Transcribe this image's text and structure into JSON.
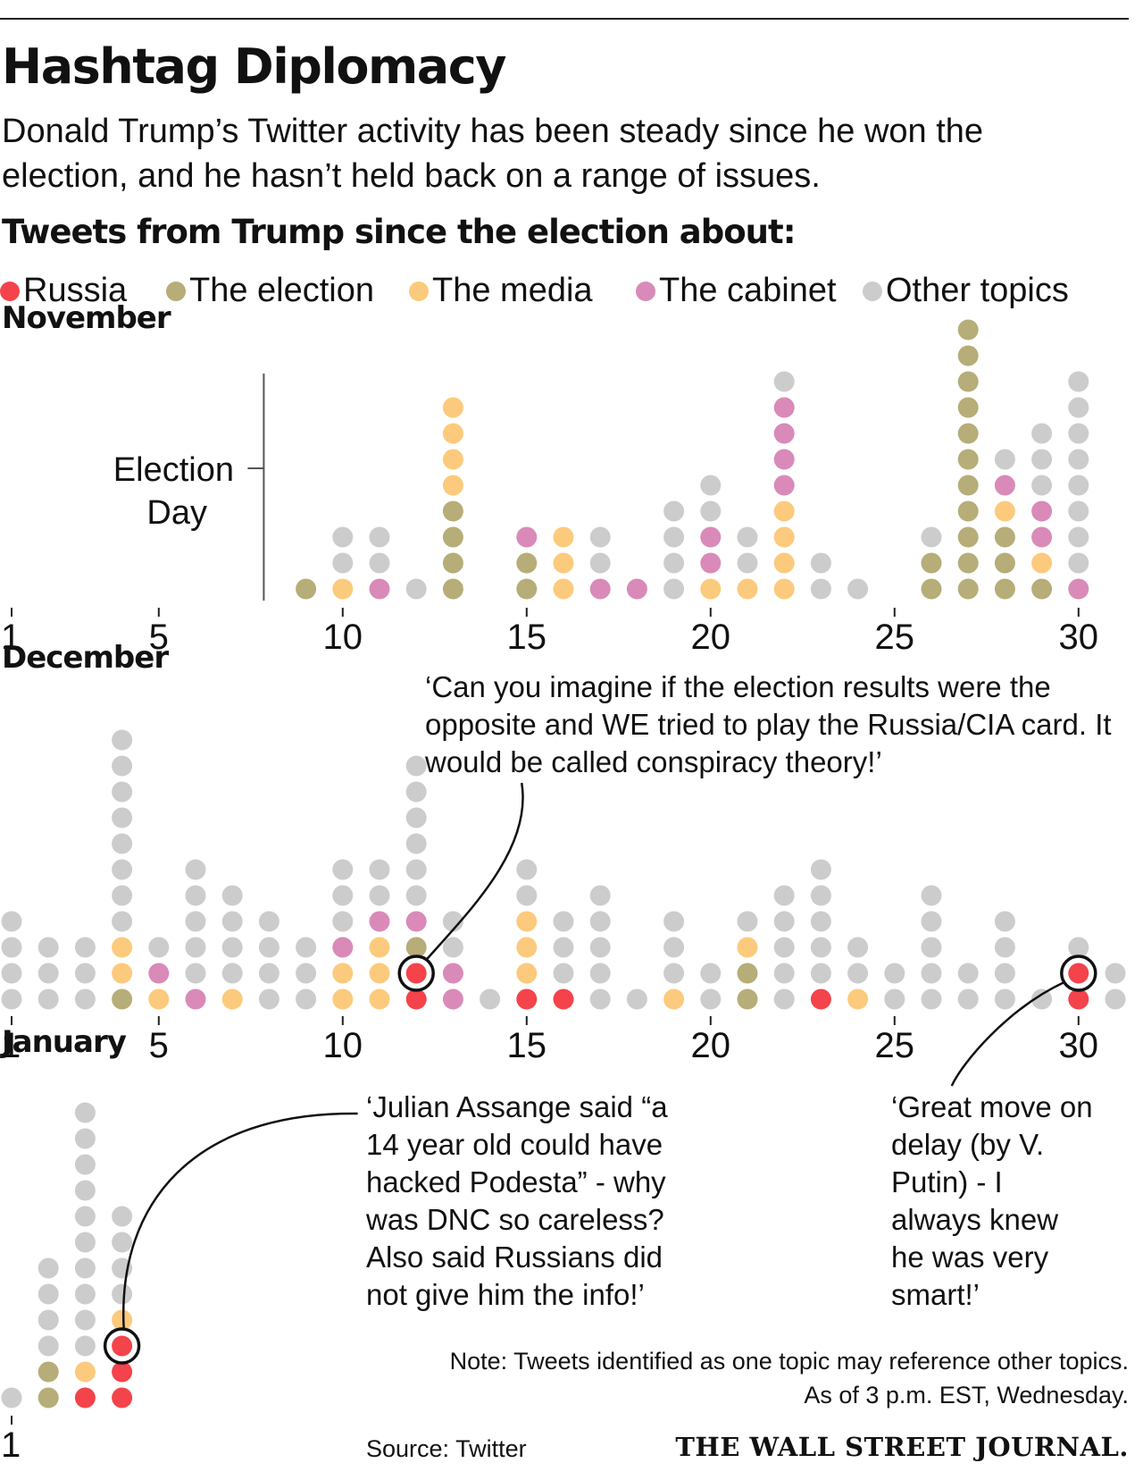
{
  "header": {
    "title": "Hashtag Diplomacy",
    "subtitle": "Donald Trump’s Twitter activity has been steady since he won the election, and he hasn’t held back on a range of issues.",
    "subhead": "Tweets from Trump since the election about:"
  },
  "legend": [
    {
      "label": "Russia",
      "color": "#f4434a"
    },
    {
      "label": "The election",
      "color": "#b6ad78"
    },
    {
      "label": "The media",
      "color": "#fcca7c"
    },
    {
      "label": "The cabinet",
      "color": "#d98ab9"
    },
    {
      "label": "Other topics",
      "color": "#cccccc"
    }
  ],
  "annotations": {
    "election_day": [
      "Election",
      "Day"
    ],
    "quote_dec12": "‘Can you imagine if the election results were the opposite and WE tried to play the Russia/CIA card. It would be called conspiracy theory!’",
    "quote_jan4": "‘Julian Assange said “a\n14 year old could have\nhacked Podesta” - why\nwas DNC so careless?\nAlso said Russians did\nnot give him the info!’",
    "quote_dec30": "‘Great move on\ndelay (by V.\nPutin) - I\nalways knew\nhe was very\nsmart!’"
  },
  "footer": {
    "note": "Note: Tweets identified as one topic may reference other topics.",
    "asof": "As of 3 p.m. EST, Wednesday.",
    "source": "Source: Twitter",
    "publisher": "THE WALL STREET JOURNAL."
  },
  "chart_data": {
    "type": "dot-stack",
    "topic_order_bottom_to_top": [
      "Russia",
      "The election",
      "The media",
      "The cabinet",
      "Other topics"
    ],
    "x_ticks": [
      1,
      5,
      10,
      15,
      20,
      25,
      30
    ],
    "months": [
      {
        "name": "November",
        "x_ticks": [
          1,
          5,
          10,
          15,
          20,
          25,
          30
        ],
        "election_day": 8,
        "days": [
          {
            "day": 9,
            "counts": [
              0,
              1,
              0,
              0,
              0
            ]
          },
          {
            "day": 10,
            "counts": [
              0,
              0,
              1,
              0,
              2
            ]
          },
          {
            "day": 11,
            "counts": [
              0,
              0,
              0,
              1,
              2
            ]
          },
          {
            "day": 12,
            "counts": [
              0,
              0,
              0,
              0,
              1
            ]
          },
          {
            "day": 13,
            "counts": [
              0,
              4,
              4,
              0,
              0
            ]
          },
          {
            "day": 15,
            "counts": [
              0,
              2,
              0,
              1,
              0
            ]
          },
          {
            "day": 16,
            "counts": [
              0,
              0,
              3,
              0,
              0
            ]
          },
          {
            "day": 17,
            "counts": [
              0,
              0,
              0,
              1,
              2
            ]
          },
          {
            "day": 18,
            "counts": [
              0,
              0,
              0,
              1,
              0
            ]
          },
          {
            "day": 19,
            "counts": [
              0,
              0,
              0,
              0,
              4
            ]
          },
          {
            "day": 20,
            "counts": [
              0,
              0,
              1,
              2,
              2
            ]
          },
          {
            "day": 21,
            "counts": [
              0,
              0,
              1,
              0,
              2
            ]
          },
          {
            "day": 22,
            "counts": [
              0,
              0,
              4,
              4,
              1
            ]
          },
          {
            "day": 23,
            "counts": [
              0,
              0,
              0,
              0,
              2
            ]
          },
          {
            "day": 24,
            "counts": [
              0,
              0,
              0,
              0,
              1
            ]
          },
          {
            "day": 26,
            "counts": [
              0,
              2,
              0,
              0,
              1
            ]
          },
          {
            "day": 27,
            "counts": [
              0,
              11,
              0,
              0,
              0
            ]
          },
          {
            "day": 28,
            "counts": [
              0,
              3,
              1,
              1,
              1
            ]
          },
          {
            "day": 29,
            "counts": [
              0,
              1,
              1,
              2,
              3
            ]
          },
          {
            "day": 30,
            "counts": [
              0,
              0,
              0,
              1,
              8
            ]
          }
        ]
      },
      {
        "name": "December",
        "x_ticks": [
          1,
          5,
          10,
          15,
          20,
          25,
          30
        ],
        "days": [
          {
            "day": 1,
            "counts": [
              0,
              0,
              0,
              0,
              4
            ]
          },
          {
            "day": 2,
            "counts": [
              0,
              0,
              0,
              0,
              3
            ]
          },
          {
            "day": 3,
            "counts": [
              0,
              0,
              0,
              0,
              3
            ]
          },
          {
            "day": 4,
            "counts": [
              0,
              1,
              2,
              0,
              8
            ]
          },
          {
            "day": 5,
            "counts": [
              0,
              0,
              1,
              1,
              1
            ]
          },
          {
            "day": 6,
            "counts": [
              0,
              0,
              0,
              1,
              5
            ]
          },
          {
            "day": 7,
            "counts": [
              0,
              0,
              1,
              0,
              4
            ]
          },
          {
            "day": 8,
            "counts": [
              0,
              0,
              0,
              0,
              4
            ]
          },
          {
            "day": 9,
            "counts": [
              0,
              0,
              0,
              0,
              3
            ]
          },
          {
            "day": 10,
            "counts": [
              0,
              0,
              2,
              1,
              3
            ]
          },
          {
            "day": 11,
            "counts": [
              0,
              0,
              3,
              1,
              2
            ]
          },
          {
            "day": 12,
            "counts": [
              2,
              1,
              0,
              1,
              6
            ]
          },
          {
            "day": 13,
            "counts": [
              0,
              0,
              0,
              2,
              2
            ]
          },
          {
            "day": 14,
            "counts": [
              0,
              0,
              0,
              0,
              1
            ]
          },
          {
            "day": 15,
            "counts": [
              1,
              0,
              3,
              0,
              2
            ]
          },
          {
            "day": 16,
            "counts": [
              1,
              0,
              0,
              0,
              3
            ]
          },
          {
            "day": 17,
            "counts": [
              0,
              0,
              0,
              0,
              5
            ]
          },
          {
            "day": 18,
            "counts": [
              0,
              0,
              0,
              0,
              1
            ]
          },
          {
            "day": 19,
            "counts": [
              0,
              0,
              1,
              0,
              3
            ]
          },
          {
            "day": 20,
            "counts": [
              0,
              0,
              0,
              0,
              2
            ]
          },
          {
            "day": 21,
            "counts": [
              0,
              2,
              1,
              0,
              1
            ]
          },
          {
            "day": 22,
            "counts": [
              0,
              0,
              0,
              0,
              5
            ]
          },
          {
            "day": 23,
            "counts": [
              1,
              0,
              0,
              0,
              5
            ]
          },
          {
            "day": 24,
            "counts": [
              0,
              0,
              1,
              0,
              2
            ]
          },
          {
            "day": 25,
            "counts": [
              0,
              0,
              0,
              0,
              2
            ]
          },
          {
            "day": 26,
            "counts": [
              0,
              0,
              0,
              0,
              5
            ]
          },
          {
            "day": 27,
            "counts": [
              0,
              0,
              0,
              0,
              2
            ]
          },
          {
            "day": 28,
            "counts": [
              0,
              0,
              0,
              0,
              4
            ]
          },
          {
            "day": 29,
            "counts": [
              0,
              0,
              0,
              0,
              1
            ]
          },
          {
            "day": 30,
            "counts": [
              2,
              0,
              0,
              0,
              1
            ]
          },
          {
            "day": 31,
            "counts": [
              0,
              0,
              0,
              0,
              2
            ]
          }
        ]
      },
      {
        "name": "January",
        "x_ticks": [
          1
        ],
        "days": [
          {
            "day": 1,
            "counts": [
              0,
              0,
              0,
              0,
              1
            ]
          },
          {
            "day": 2,
            "counts": [
              0,
              2,
              0,
              0,
              4
            ]
          },
          {
            "day": 3,
            "counts": [
              1,
              0,
              1,
              0,
              10
            ]
          },
          {
            "day": 4,
            "counts": [
              3,
              0,
              1,
              0,
              4
            ]
          }
        ]
      }
    ],
    "highlights": [
      {
        "month": "December",
        "day": 12,
        "topic": "Russia",
        "quote": "quote_dec12"
      },
      {
        "month": "December",
        "day": 30,
        "topic": "Russia",
        "quote": "quote_dec30"
      },
      {
        "month": "January",
        "day": 4,
        "topic": "Russia",
        "quote": "quote_jan4"
      }
    ]
  }
}
